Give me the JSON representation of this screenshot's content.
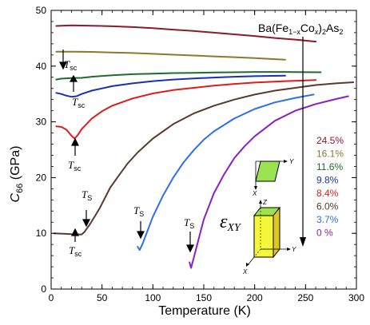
{
  "chart_data": {
    "type": "line",
    "title": "Ba(Fe1-xCox)2As2",
    "title_parts": {
      "a": "Ba(Fe",
      "b": "1−x",
      "c": "Co",
      "d": "x",
      "e": ")",
      "f": "2",
      "g": "As",
      "h": "2"
    },
    "xlabel": "Temperature (K)",
    "ylabel": "C",
    "ylabel_sub": "66",
    "ylabel_unit": " (GPa)",
    "xlim": [
      0,
      300
    ],
    "ylim": [
      0,
      50
    ],
    "xticks": [
      0,
      50,
      100,
      150,
      200,
      250,
      300
    ],
    "yticks": [
      0,
      10,
      20,
      30,
      40,
      50
    ],
    "legend_position": "right",
    "series": [
      {
        "name": "24.5%",
        "color": "#8b1a2b",
        "points": [
          [
            5,
            47.2
          ],
          [
            20,
            47.3
          ],
          [
            40,
            47.25
          ],
          [
            60,
            47.15
          ],
          [
            80,
            47.0
          ],
          [
            100,
            46.8
          ],
          [
            120,
            46.55
          ],
          [
            140,
            46.3
          ],
          [
            160,
            46.0
          ],
          [
            180,
            45.7
          ],
          [
            200,
            45.4
          ],
          [
            220,
            45.05
          ],
          [
            240,
            44.75
          ],
          [
            260,
            44.4
          ]
        ]
      },
      {
        "name": "16.1%",
        "color": "#8a7a2a",
        "points": [
          [
            5,
            42.6
          ],
          [
            20,
            42.6
          ],
          [
            40,
            42.55
          ],
          [
            60,
            42.45
          ],
          [
            80,
            42.35
          ],
          [
            100,
            42.2
          ],
          [
            120,
            42.05
          ],
          [
            140,
            41.9
          ],
          [
            160,
            41.75
          ],
          [
            180,
            41.6
          ],
          [
            200,
            41.45
          ],
          [
            220,
            41.25
          ],
          [
            230,
            41.15
          ]
        ]
      },
      {
        "name": "11.6%",
        "color": "#1f6b2a",
        "points": [
          [
            5,
            37.6
          ],
          [
            10,
            37.75
          ],
          [
            20,
            37.85
          ],
          [
            30,
            37.9
          ],
          [
            40,
            38.1
          ],
          [
            60,
            38.35
          ],
          [
            80,
            38.55
          ],
          [
            100,
            38.65
          ],
          [
            120,
            38.75
          ],
          [
            140,
            38.8
          ],
          [
            160,
            38.85
          ],
          [
            180,
            38.9
          ],
          [
            200,
            38.95
          ],
          [
            230,
            38.95
          ],
          [
            265,
            38.9
          ]
        ]
      },
      {
        "name": "9.8%",
        "color": "#1a2fb8",
        "points": [
          [
            5,
            35.2
          ],
          [
            10,
            35.0
          ],
          [
            15,
            34.7
          ],
          [
            20,
            34.5
          ],
          [
            25,
            34.6
          ],
          [
            30,
            35.0
          ],
          [
            40,
            35.6
          ],
          [
            60,
            36.4
          ],
          [
            80,
            36.9
          ],
          [
            100,
            37.3
          ],
          [
            120,
            37.6
          ],
          [
            140,
            37.8
          ],
          [
            160,
            37.95
          ],
          [
            180,
            38.1
          ],
          [
            200,
            38.2
          ],
          [
            230,
            38.3
          ]
        ]
      },
      {
        "name": "8.4%",
        "color": "#d81e1e",
        "points": [
          [
            5,
            29.2
          ],
          [
            10,
            29.1
          ],
          [
            15,
            28.6
          ],
          [
            20,
            27.5
          ],
          [
            23,
            27.0
          ],
          [
            26,
            27.6
          ],
          [
            30,
            28.7
          ],
          [
            40,
            30.6
          ],
          [
            50,
            31.9
          ],
          [
            60,
            32.9
          ],
          [
            80,
            34.2
          ],
          [
            100,
            35.1
          ],
          [
            120,
            35.7
          ],
          [
            140,
            36.1
          ],
          [
            160,
            36.5
          ],
          [
            180,
            36.8
          ],
          [
            200,
            37.05
          ],
          [
            230,
            37.3
          ],
          [
            260,
            37.5
          ]
        ]
      },
      {
        "name": "6.0%",
        "color": "#5a3a2c",
        "points": [
          [
            3,
            10.0
          ],
          [
            15,
            9.9
          ],
          [
            25,
            9.8
          ],
          [
            30,
            9.8
          ],
          [
            33,
            10.3
          ],
          [
            38,
            11.6
          ],
          [
            43,
            13.1
          ],
          [
            48,
            14.6
          ],
          [
            53,
            16.4
          ],
          [
            58,
            18.2
          ],
          [
            65,
            20.0
          ],
          [
            75,
            22.5
          ],
          [
            85,
            24.5
          ],
          [
            100,
            27.0
          ],
          [
            120,
            29.6
          ],
          [
            140,
            31.5
          ],
          [
            160,
            32.9
          ],
          [
            180,
            34.0
          ],
          [
            200,
            34.9
          ],
          [
            220,
            35.6
          ],
          [
            240,
            36.1
          ],
          [
            260,
            36.6
          ],
          [
            280,
            36.9
          ],
          [
            297,
            37.1
          ]
        ]
      },
      {
        "name": "3.7%",
        "color": "#2f6fe8",
        "points": [
          [
            85,
            7.6
          ],
          [
            87,
            7.0
          ],
          [
            90,
            8.2
          ],
          [
            95,
            10.6
          ],
          [
            100,
            13.0
          ],
          [
            110,
            16.8
          ],
          [
            120,
            20.0
          ],
          [
            130,
            22.7
          ],
          [
            140,
            24.9
          ],
          [
            150,
            26.8
          ],
          [
            160,
            28.3
          ],
          [
            180,
            30.6
          ],
          [
            200,
            32.3
          ],
          [
            220,
            33.5
          ],
          [
            240,
            34.3
          ],
          [
            258,
            34.9
          ]
        ]
      },
      {
        "name": "0  %",
        "color": "#8a1fc7",
        "points": [
          [
            136,
            4.8
          ],
          [
            137.5,
            3.8
          ],
          [
            140,
            5.5
          ],
          [
            145,
            9.0
          ],
          [
            150,
            12.5
          ],
          [
            160,
            17.2
          ],
          [
            170,
            20.6
          ],
          [
            180,
            23.5
          ],
          [
            190,
            25.6
          ],
          [
            200,
            27.4
          ],
          [
            220,
            30.2
          ],
          [
            240,
            32.0
          ],
          [
            260,
            33.2
          ],
          [
            280,
            34.1
          ],
          [
            292,
            34.6
          ]
        ]
      }
    ],
    "annotations": {
      "tsc_1": {
        "label": "T",
        "sub": "sc"
      },
      "tsc_2": {
        "label": "T",
        "sub": "sc"
      },
      "tsc_3": {
        "label": "T",
        "sub": "sc"
      },
      "tsc_4": {
        "label": "T",
        "sub": "sc"
      },
      "ts_1": {
        "label": "T",
        "sub": "S"
      },
      "ts_2": {
        "label": "T",
        "sub": "S"
      },
      "ts_3": {
        "label": "T",
        "sub": "S"
      },
      "strain": {
        "label": "ε",
        "sub": "XY"
      }
    },
    "inset_axes": {
      "x": "X",
      "y": "Y",
      "z": "Z"
    }
  }
}
